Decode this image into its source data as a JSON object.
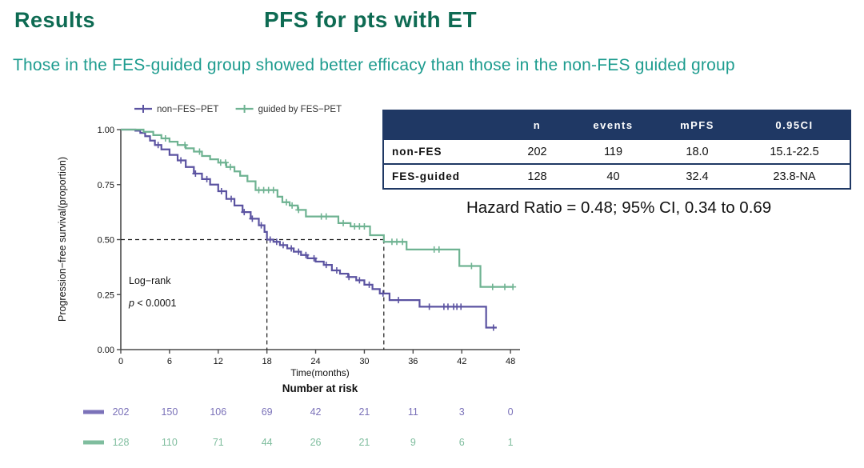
{
  "header": {
    "section_label": "Results",
    "title": "PFS for pts with ET",
    "subtitle": "Those in the FES-guided group showed better efficacy than those in the non-FES guided group"
  },
  "colors": {
    "title_green": "#0E6B53",
    "subtitle_teal": "#1E9C8F",
    "non_fes_purple": "#5B53A1",
    "fes_green": "#6FB392",
    "risk_purple": "#7B72B9",
    "risk_green": "#7FBD9E",
    "table_navy": "#1F3864",
    "axis_gray": "#4A4A4A",
    "guide_black": "#1A1A1A",
    "text_black": "#111111"
  },
  "summary_table": {
    "columns": [
      "",
      "n",
      "events",
      "mPFS",
      "0.95CI"
    ],
    "rows": [
      {
        "label": "non-FES",
        "n": "202",
        "events": "119",
        "mpfs": "18.0",
        "ci": "15.1-22.5"
      },
      {
        "label": "FES-guided",
        "n": "128",
        "events": "40",
        "mpfs": "32.4",
        "ci": "23.8-NA"
      }
    ]
  },
  "hazard_text": "Hazard Ratio = 0.48; 95% CI, 0.34 to 0.69",
  "chart_data": {
    "type": "line",
    "subtype": "kaplan-meier-step",
    "xlabel": "Time(months)",
    "ylabel": "Progression−free survival(proportion)",
    "xlim": [
      0,
      48
    ],
    "xticks": [
      0,
      6,
      12,
      18,
      24,
      30,
      36,
      42,
      48
    ],
    "ylim": [
      0,
      1
    ],
    "yticks": [
      "0.00",
      "0.25",
      "0.50",
      "0.75",
      "1.00"
    ],
    "grid": false,
    "legend_position": "top",
    "annotations": {
      "logrank_line1": "Log−rank",
      "p_italic": "p",
      "p_text": " < 0.0001"
    },
    "median_guides": {
      "y": 0.5,
      "x1": 18,
      "x2": 32.4
    },
    "series": [
      {
        "name": "non−FES−PET",
        "color": "#5B53A1",
        "steps": [
          [
            0,
            1.0
          ],
          [
            1.8,
            0.995
          ],
          [
            2.4,
            0.985
          ],
          [
            3,
            0.97
          ],
          [
            3.6,
            0.95
          ],
          [
            4.2,
            0.93
          ],
          [
            5,
            0.91
          ],
          [
            6,
            0.885
          ],
          [
            7,
            0.86
          ],
          [
            8,
            0.83
          ],
          [
            9,
            0.8
          ],
          [
            10,
            0.775
          ],
          [
            11,
            0.75
          ],
          [
            12,
            0.72
          ],
          [
            13,
            0.685
          ],
          [
            14,
            0.655
          ],
          [
            15,
            0.625
          ],
          [
            16,
            0.595
          ],
          [
            17,
            0.565
          ],
          [
            17.7,
            0.535
          ],
          [
            18,
            0.5
          ],
          [
            18.8,
            0.49
          ],
          [
            19.6,
            0.475
          ],
          [
            20.5,
            0.46
          ],
          [
            21.3,
            0.445
          ],
          [
            22.2,
            0.43
          ],
          [
            23,
            0.415
          ],
          [
            24,
            0.4
          ],
          [
            25,
            0.385
          ],
          [
            26,
            0.36
          ],
          [
            27,
            0.345
          ],
          [
            28,
            0.33
          ],
          [
            29,
            0.315
          ],
          [
            30,
            0.295
          ],
          [
            31,
            0.275
          ],
          [
            31.9,
            0.255
          ],
          [
            33.1,
            0.225
          ],
          [
            36.8,
            0.195
          ],
          [
            45,
            0.1
          ],
          [
            46.3,
            0.1
          ]
        ],
        "censors": [
          4.6,
          7.4,
          9.2,
          10.6,
          12.4,
          13.6,
          15.2,
          16.2,
          17.3,
          18.4,
          19.2,
          20.0,
          21.0,
          21.9,
          22.8,
          23.8,
          25.3,
          26.6,
          28.1,
          29.4,
          30.6,
          32.3,
          34.2,
          38.0,
          39.8,
          40.3,
          41.0,
          41.4,
          41.9,
          45.9
        ]
      },
      {
        "name": "guided by FES−PET",
        "color": "#6FB392",
        "steps": [
          [
            0,
            1.0
          ],
          [
            2.8,
            0.99
          ],
          [
            4,
            0.975
          ],
          [
            5,
            0.96
          ],
          [
            6,
            0.945
          ],
          [
            7,
            0.93
          ],
          [
            8,
            0.915
          ],
          [
            9,
            0.9
          ],
          [
            10,
            0.88
          ],
          [
            11,
            0.865
          ],
          [
            12,
            0.85
          ],
          [
            13,
            0.83
          ],
          [
            14,
            0.81
          ],
          [
            14.7,
            0.79
          ],
          [
            15.6,
            0.765
          ],
          [
            16.6,
            0.725
          ],
          [
            19.3,
            0.695
          ],
          [
            19.9,
            0.67
          ],
          [
            20.8,
            0.655
          ],
          [
            21.8,
            0.635
          ],
          [
            22.8,
            0.605
          ],
          [
            26.8,
            0.575
          ],
          [
            28.3,
            0.56
          ],
          [
            30.7,
            0.52
          ],
          [
            32.4,
            0.49
          ],
          [
            35.2,
            0.455
          ],
          [
            41.7,
            0.38
          ],
          [
            44.3,
            0.285
          ],
          [
            48.4,
            0.285
          ]
        ],
        "censors": [
          5.5,
          7.9,
          9.7,
          12.3,
          12.9,
          13.5,
          17.0,
          17.6,
          18.2,
          18.8,
          20.4,
          21.1,
          21.9,
          24.7,
          25.3,
          27.4,
          28.8,
          29.4,
          30.0,
          33.4,
          34.0,
          34.7,
          38.6,
          39.2,
          43.2,
          45.8,
          47.3,
          48.3
        ]
      }
    ],
    "number_at_risk": {
      "title": "Number at risk",
      "times": [
        0,
        6,
        12,
        18,
        24,
        30,
        36,
        42,
        48
      ],
      "rows": [
        {
          "name": "non−FES−PET",
          "color": "#7B72B9",
          "counts": [
            "202",
            "150",
            "106",
            "69",
            "42",
            "21",
            "11",
            "3",
            "0"
          ]
        },
        {
          "name": "guided by FES−PET",
          "color": "#7FBD9E",
          "counts": [
            "128",
            "110",
            "71",
            "44",
            "26",
            "21",
            "9",
            "6",
            "1"
          ]
        }
      ]
    }
  }
}
